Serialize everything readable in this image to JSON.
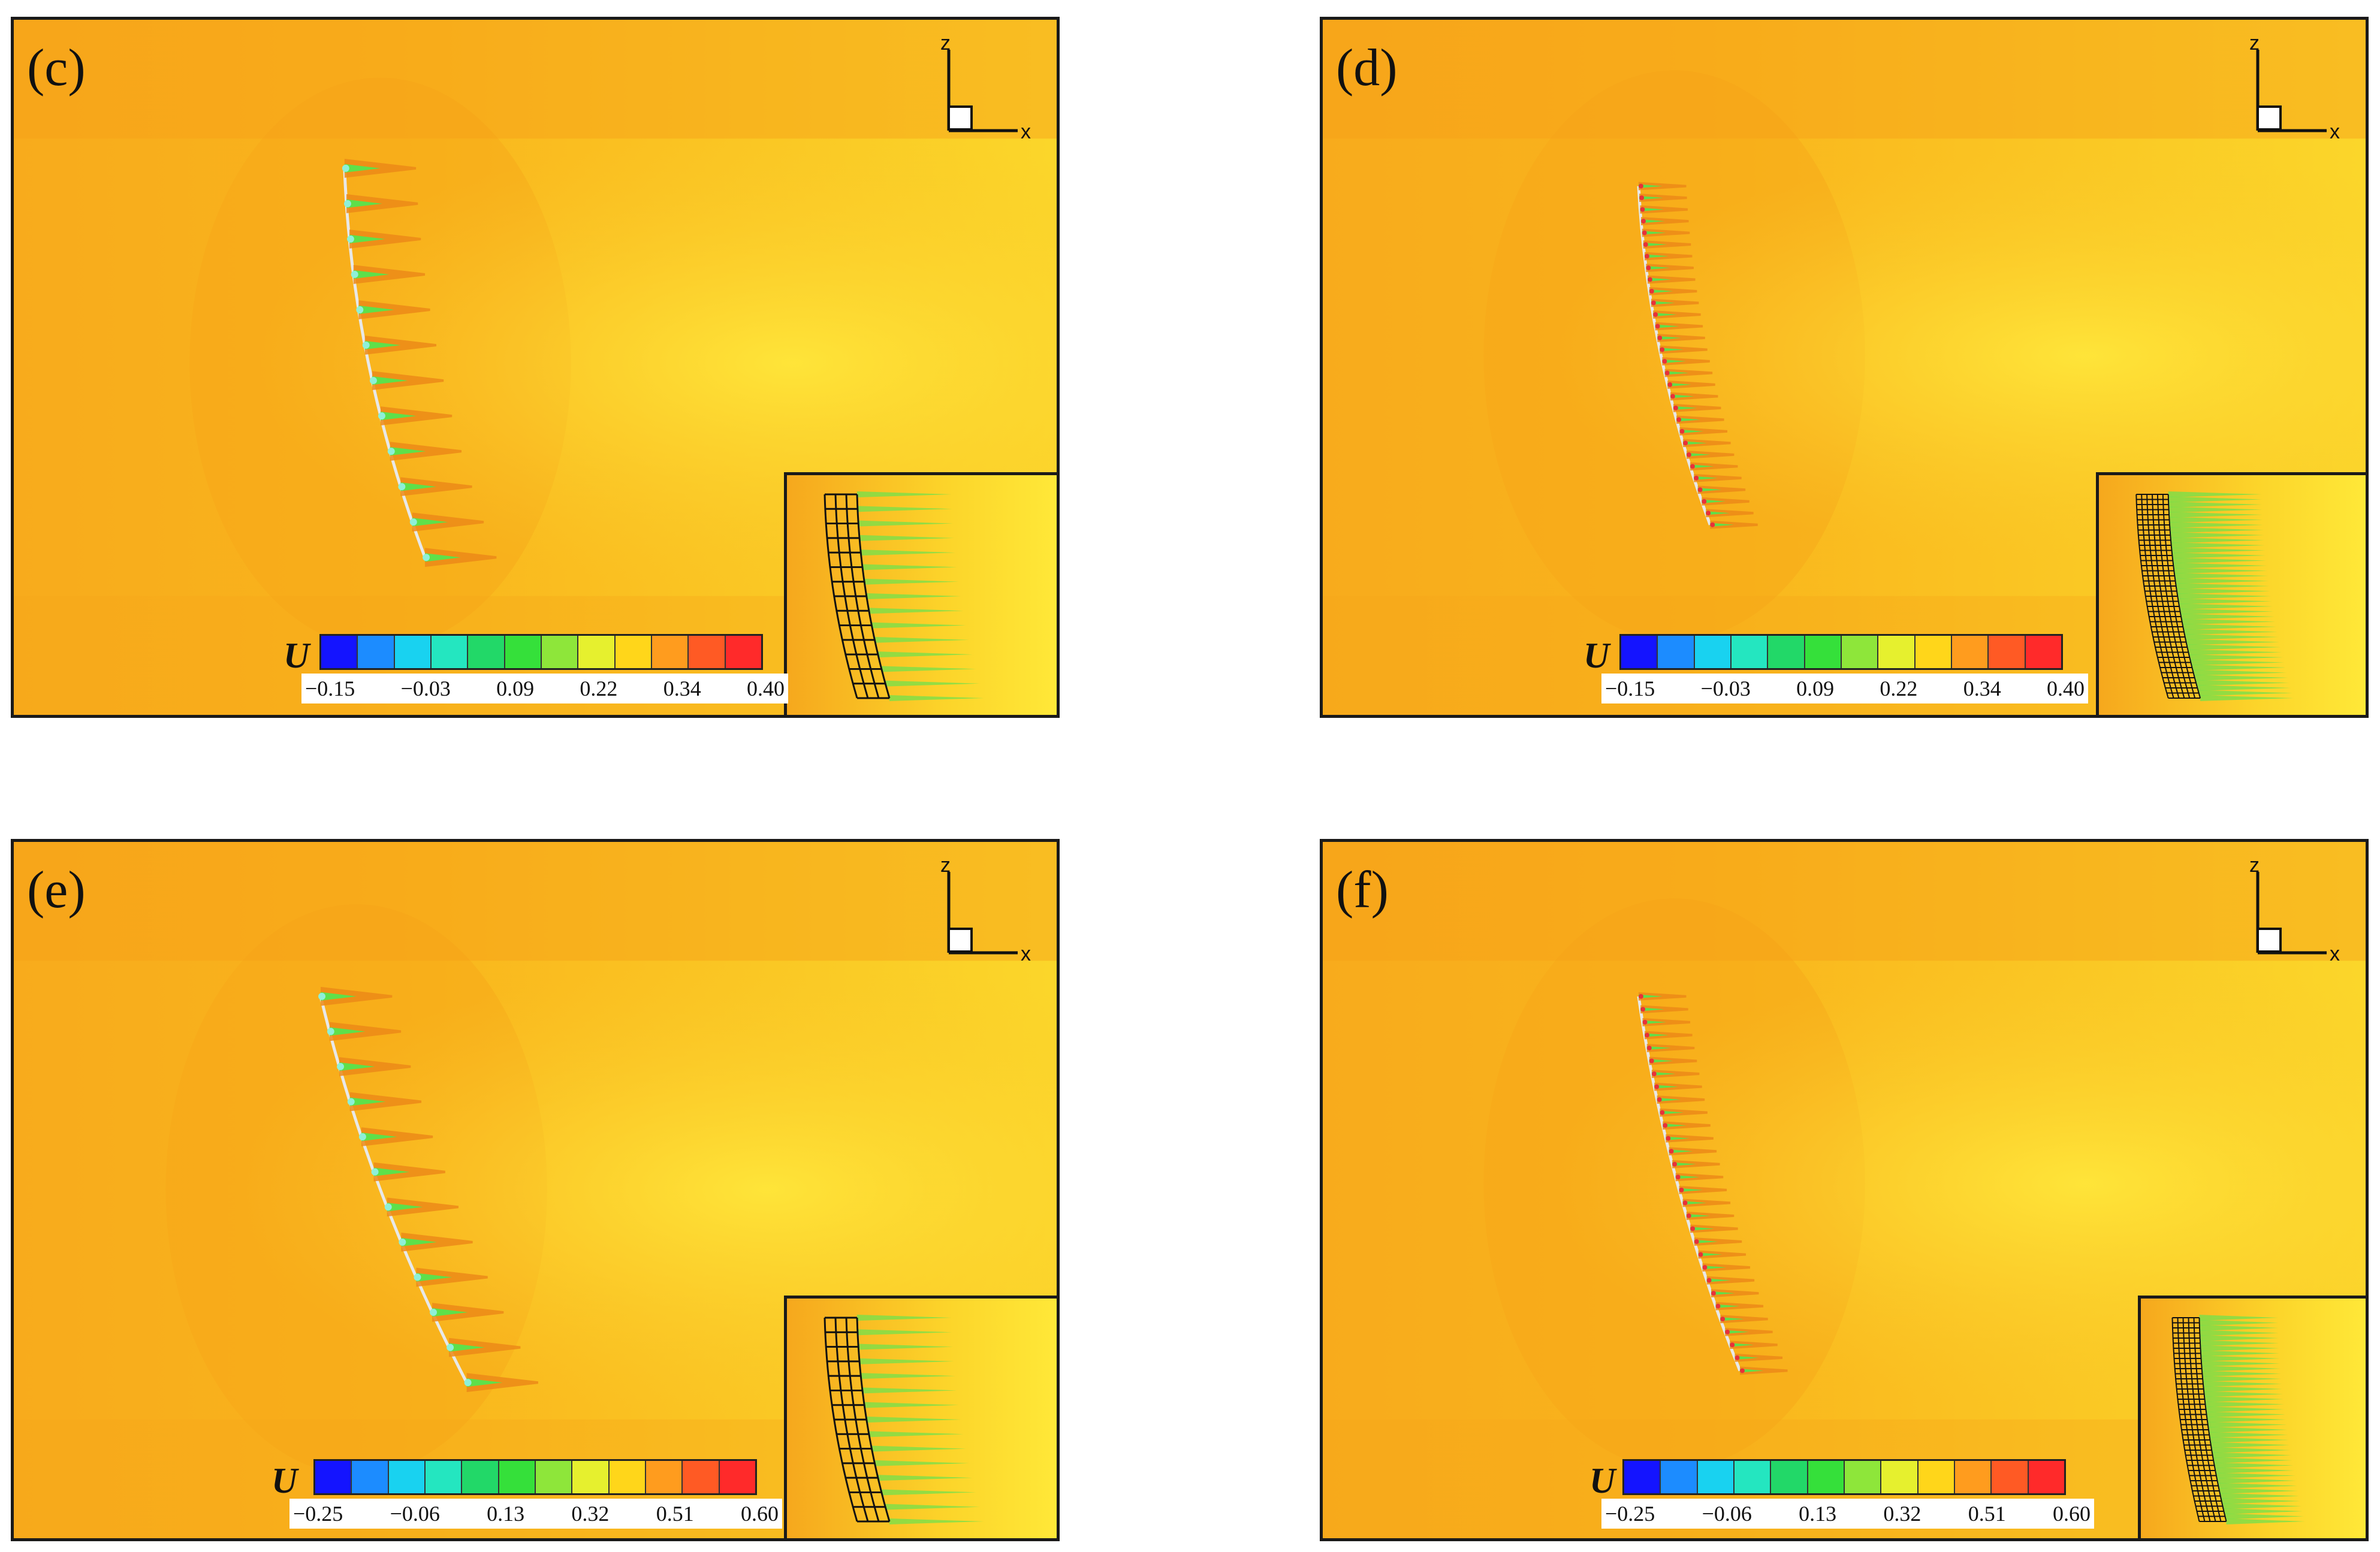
{
  "colorbar_colors": [
    "#1414ff",
    "#1c8cff",
    "#19d2f0",
    "#24e6c0",
    "#22d868",
    "#35e03a",
    "#8ee63a",
    "#e6f02e",
    "#ffd61a",
    "#ff9c1e",
    "#ff5a24",
    "#ff2a2a"
  ],
  "panels": [
    {
      "label": "(c)",
      "variable": "U",
      "ticks": [
        "−0.15",
        "−0.03",
        "0.09",
        "0.22",
        "0.34",
        "0.40"
      ],
      "axis_z": "z",
      "axis_x": "x"
    },
    {
      "label": "(d)",
      "variable": "U",
      "ticks": [
        "−0.15",
        "−0.03",
        "0.09",
        "0.22",
        "0.34",
        "0.40"
      ],
      "axis_z": "z",
      "axis_x": "x"
    },
    {
      "label": "(e)",
      "variable": "U",
      "ticks": [
        "−0.25",
        "−0.06",
        "0.13",
        "0.32",
        "0.51",
        "0.60"
      ],
      "axis_z": "z",
      "axis_x": "x"
    },
    {
      "label": "(f)",
      "variable": "U",
      "ticks": [
        "−0.25",
        "−0.06",
        "0.13",
        "0.32",
        "0.51",
        "0.60"
      ],
      "axis_z": "z",
      "axis_x": "x"
    }
  ]
}
